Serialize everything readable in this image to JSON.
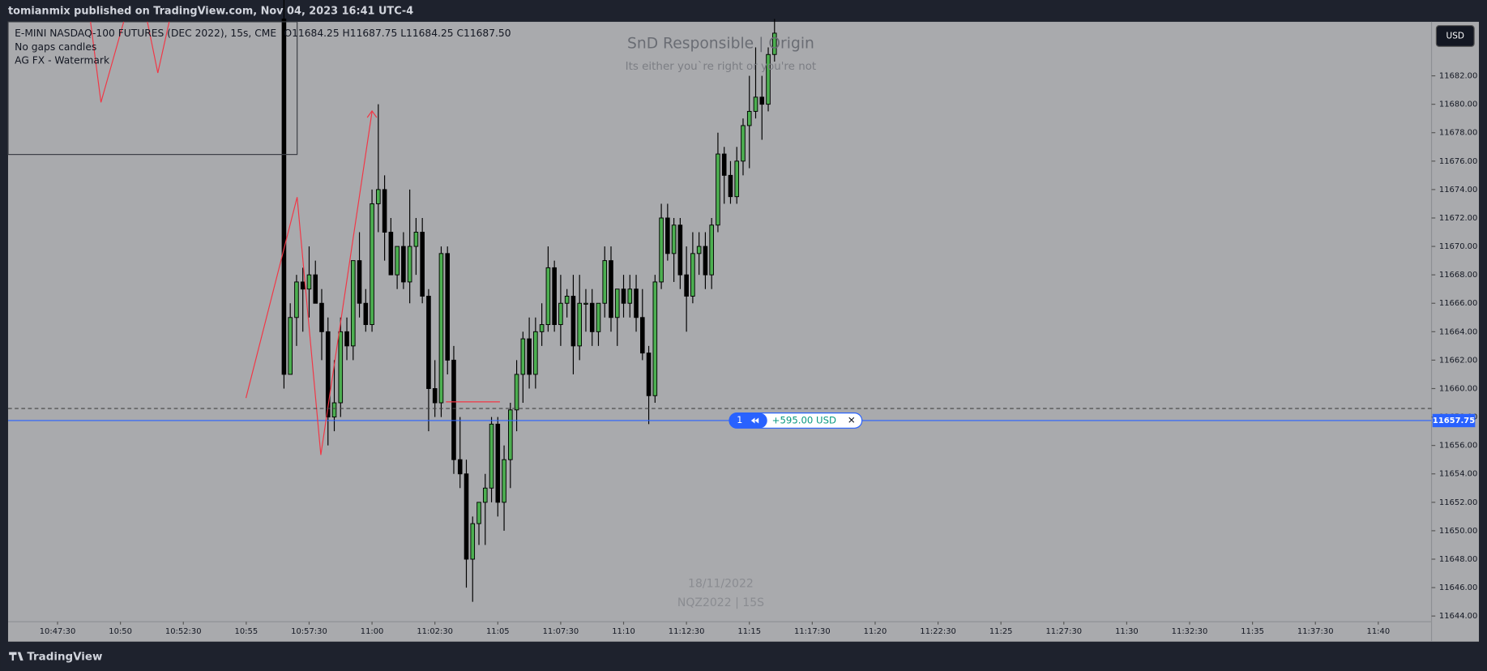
{
  "header": {
    "publisher": "tomianmix published on TradingView.com, Nov 04, 2023 16:41 UTC-4"
  },
  "legend": {
    "symbol": "E-MINI NASDAQ-100 FUTURES (DEC 2022), 15s, CME",
    "ohlc": "O11684.25  H11687.75  L11684.25  C11687.50",
    "indicators": [
      "No gaps candles",
      "AG FX - Watermark"
    ]
  },
  "watermark": {
    "title": "SnD Responsible | Origin",
    "subtitle": "Its either you`re right or you're not",
    "date": "18/11/2022",
    "symbol": "NQZ2022 | 15S"
  },
  "currency_button": "USD",
  "position": {
    "qty": "1",
    "pnl": "+595.00 USD",
    "close": "✕",
    "price": 11657.75,
    "price_label": "11657.75"
  },
  "footer": {
    "brand": "TradingView"
  },
  "chart_data": {
    "type": "candlestick",
    "xlim": [
      "10:45:32",
      "11:42:07"
    ],
    "xticks": [
      "10:47:30",
      "10:50",
      "10:52:30",
      "10:55",
      "10:57:30",
      "11:00",
      "11:02:30",
      "11:05",
      "11:07:30",
      "11:10",
      "11:12:30",
      "11:15",
      "11:17:30",
      "11:20",
      "11:22:30",
      "11:25",
      "11:27:30",
      "11:30",
      "11:32:30",
      "11:35",
      "11:37:30",
      "11:40"
    ],
    "ylim": [
      11643.6,
      11685.8
    ],
    "yticks": [
      {
        "value": 11644,
        "label": "11644.00"
      },
      {
        "value": 11646,
        "label": "11646.00"
      },
      {
        "value": 11648,
        "label": "11648.00"
      },
      {
        "value": 11650,
        "label": "11650.00"
      },
      {
        "value": 11652,
        "label": "11652.00"
      },
      {
        "value": 11654,
        "label": "11654.00"
      },
      {
        "value": 11656,
        "label": "11656.00"
      },
      {
        "value": 11658,
        "label": "11658.00"
      },
      {
        "value": 11660,
        "label": "11660.00"
      },
      {
        "value": 11662,
        "label": "11662.00"
      },
      {
        "value": 11664,
        "label": "11664.00"
      },
      {
        "value": 11666,
        "label": "11666.00"
      },
      {
        "value": 11668,
        "label": "11668.00"
      },
      {
        "value": 11670,
        "label": "11670.00"
      },
      {
        "value": 11672,
        "label": "11672.00"
      },
      {
        "value": 11674,
        "label": "11674.00"
      },
      {
        "value": 11676,
        "label": "11676.00"
      },
      {
        "value": 11678,
        "label": "11678.00"
      },
      {
        "value": 11680,
        "label": "11680.00"
      },
      {
        "value": 11682,
        "label": "11682.00"
      }
    ],
    "up_color": "#4caf50",
    "down_color": "#000000",
    "x": [
      "10:56:30",
      "10:56:45",
      "10:57:00",
      "10:57:15",
      "10:57:30",
      "10:57:45",
      "10:58:00",
      "10:58:15",
      "10:58:30",
      "10:58:45",
      "10:59:00",
      "10:59:15",
      "10:59:30",
      "10:59:45",
      "11:00:00",
      "11:00:15",
      "11:00:30",
      "11:00:45",
      "11:01:00",
      "11:01:15",
      "11:01:30",
      "11:01:45",
      "11:02:00",
      "11:02:15",
      "11:02:30",
      "11:02:45",
      "11:03:00",
      "11:03:15",
      "11:03:30",
      "11:03:45",
      "11:04:00",
      "11:04:15",
      "11:04:30",
      "11:04:45",
      "11:05:00",
      "11:05:15",
      "11:05:30",
      "11:05:45",
      "11:06:00",
      "11:06:15",
      "11:06:30",
      "11:06:45",
      "11:07:00",
      "11:07:15",
      "11:07:30",
      "11:07:45",
      "11:08:00",
      "11:08:15",
      "11:08:30",
      "11:08:45",
      "11:09:00",
      "11:09:15",
      "11:09:30",
      "11:09:45",
      "11:10:00",
      "11:10:15",
      "11:10:30",
      "11:10:45",
      "11:11:00",
      "11:11:15",
      "11:11:30",
      "11:11:45",
      "11:12:00",
      "11:12:15",
      "11:12:30",
      "11:12:45",
      "11:13:00",
      "11:13:15",
      "11:13:30",
      "11:13:45",
      "11:14:00",
      "11:14:15",
      "11:14:30",
      "11:14:45",
      "11:15:00",
      "11:15:15",
      "11:15:30",
      "11:15:45",
      "11:16:00"
    ],
    "open": [
      11686,
      11661,
      11665,
      11667.5,
      11667,
      11668,
      11666,
      11664,
      11658,
      11659,
      11664,
      11663,
      11669,
      11666,
      11664.5,
      11673,
      11674,
      11671,
      11668,
      11670,
      11667.5,
      11670,
      11671,
      11666.5,
      11660,
      11659,
      11669.5,
      11662,
      11655,
      11654,
      11648,
      11650.5,
      11652,
      11653,
      11657.5,
      11652,
      11655,
      11658.5,
      11661,
      11663.5,
      11661,
      11664,
      11664.5,
      11668.5,
      11664.5,
      11666,
      11666.5,
      11663,
      11666,
      11666,
      11664,
      11666,
      11669,
      11665,
      11667,
      11666,
      11667,
      11665,
      11662.5,
      11659.5,
      11667.5,
      11672,
      11669.5,
      11671.5,
      11668,
      11666.5,
      11669.5,
      11670,
      11668,
      11671.5,
      11676.5,
      11675,
      11673.5,
      11676,
      11678.5,
      11679.5,
      11680.5,
      11680,
      11683.5
    ],
    "high": [
      11688,
      11666,
      11668,
      11668.5,
      11670,
      11669,
      11667,
      11665,
      11662,
      11665,
      11665,
      11669,
      11671,
      11667,
      11674,
      11680,
      11675,
      11672,
      11670,
      11671,
      11674,
      11672,
      11672,
      11667,
      11662,
      11670,
      11670,
      11663,
      11658,
      11655,
      11651,
      11652,
      11654,
      11658,
      11658,
      11656,
      11659,
      11662,
      11664,
      11665,
      11665,
      11666,
      11670,
      11669,
      11668,
      11667,
      11668,
      11668,
      11667,
      11667,
      11666,
      11670,
      11670,
      11667,
      11668,
      11668,
      11668,
      11667,
      11663,
      11668,
      11673,
      11673,
      11672,
      11672,
      11670,
      11671,
      11671,
      11671,
      11672,
      11678,
      11677,
      11676,
      11677,
      11679,
      11682,
      11684,
      11682,
      11684,
      11686
    ],
    "low": [
      11660,
      11661,
      11663,
      11664,
      11665,
      11666,
      11662,
      11656,
      11657,
      11658,
      11662,
      11662,
      11665,
      11664,
      11664,
      11671,
      11669,
      11668,
      11667,
      11667,
      11666,
      11668,
      11666,
      11657,
      11658,
      11658,
      11661,
      11654,
      11653,
      11646,
      11645,
      11649,
      11649,
      11652,
      11651,
      11650,
      11653,
      11657,
      11659,
      11660,
      11660,
      11663,
      11664,
      11664,
      11663,
      11665,
      11661,
      11662,
      11664,
      11663,
      11663,
      11665,
      11664,
      11663,
      11665,
      11665,
      11664,
      11662,
      11657.5,
      11659,
      11667,
      11669,
      11667.5,
      11667,
      11664,
      11666,
      11668,
      11667,
      11667,
      11671,
      11673,
      11673,
      11673,
      11675,
      11675.5,
      11679,
      11677.5,
      11679.5,
      11683
    ],
    "close": [
      11661,
      11665,
      11667.5,
      11667,
      11668,
      11666,
      11664,
      11658,
      11659,
      11664,
      11663,
      11669,
      11666,
      11664.5,
      11673,
      11674,
      11671,
      11668,
      11670,
      11667.5,
      11670,
      11671,
      11666.5,
      11660,
      11659,
      11669.5,
      11662,
      11655,
      11654,
      11648,
      11650.5,
      11652,
      11653,
      11657.5,
      11652,
      11655,
      11658.5,
      11661,
      11663.5,
      11661,
      11664,
      11664.5,
      11668.5,
      11664.5,
      11666,
      11666.5,
      11663,
      11666,
      11666,
      11664,
      11666,
      11669,
      11665,
      11667,
      11666,
      11667,
      11665,
      11662.5,
      11659.5,
      11667.5,
      11672,
      11669.5,
      11671.5,
      11668,
      11666.5,
      11669.5,
      11670,
      11668,
      11671.5,
      11676.5,
      11675,
      11673.5,
      11676,
      11678.5,
      11679.5,
      11680.5,
      11680,
      11683.5,
      11685
    ]
  }
}
